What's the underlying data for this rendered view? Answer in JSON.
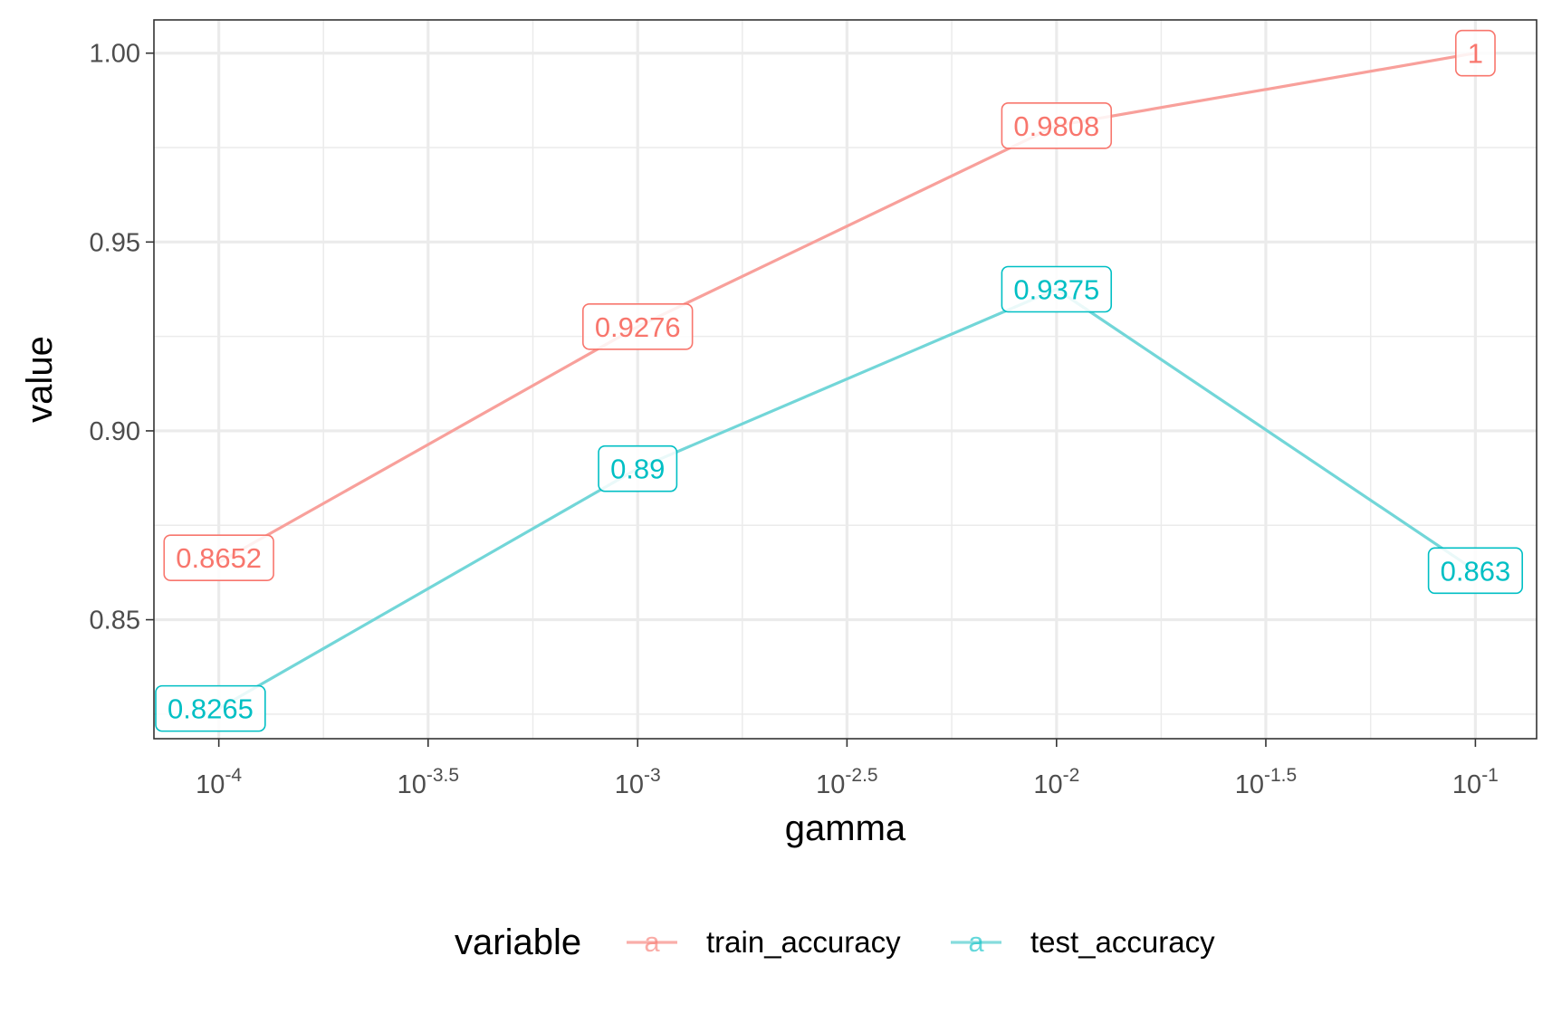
{
  "chart_data": {
    "type": "line",
    "xlabel": "gamma",
    "ylabel": "value",
    "x_scale": "log10",
    "x": [
      0.0001,
      0.001,
      0.01,
      0.1
    ],
    "xlim": [
      7e-05,
      0.14
    ],
    "ylim": [
      0.8185,
      1.0088
    ],
    "x_ticks": [
      {
        "base": "10",
        "exp": "-4",
        "value": 0.0001
      },
      {
        "base": "10",
        "exp": "-3.5",
        "value": 0.000316
      },
      {
        "base": "10",
        "exp": "-3",
        "value": 0.001
      },
      {
        "base": "10",
        "exp": "-2.5",
        "value": 0.00316
      },
      {
        "base": "10",
        "exp": "-2",
        "value": 0.01
      },
      {
        "base": "10",
        "exp": "-1.5",
        "value": 0.0316
      },
      {
        "base": "10",
        "exp": "-1",
        "value": 0.1
      }
    ],
    "y_ticks": [
      {
        "label": "0.85",
        "value": 0.85
      },
      {
        "label": "0.90",
        "value": 0.9
      },
      {
        "label": "0.95",
        "value": 0.95
      },
      {
        "label": "1.00",
        "value": 1.0
      }
    ],
    "grid": true,
    "legend": {
      "title": "variable",
      "position": "bottom",
      "key_glyph": "a"
    },
    "series": [
      {
        "name": "train_accuracy",
        "values": [
          0.8652,
          0.9276,
          0.9808,
          1
        ],
        "labels": [
          "0.8652",
          "0.9276",
          "0.9808",
          "1"
        ],
        "line_color": "#F8A09B",
        "label_color": "#F8766D"
      },
      {
        "name": "test_accuracy",
        "values": [
          0.8265,
          0.89,
          0.9375,
          0.863
        ],
        "labels": [
          "0.8265",
          "0.89",
          "0.9375",
          "0.863"
        ],
        "line_color": "#72D6D8",
        "label_color": "#00BFC4"
      }
    ]
  }
}
